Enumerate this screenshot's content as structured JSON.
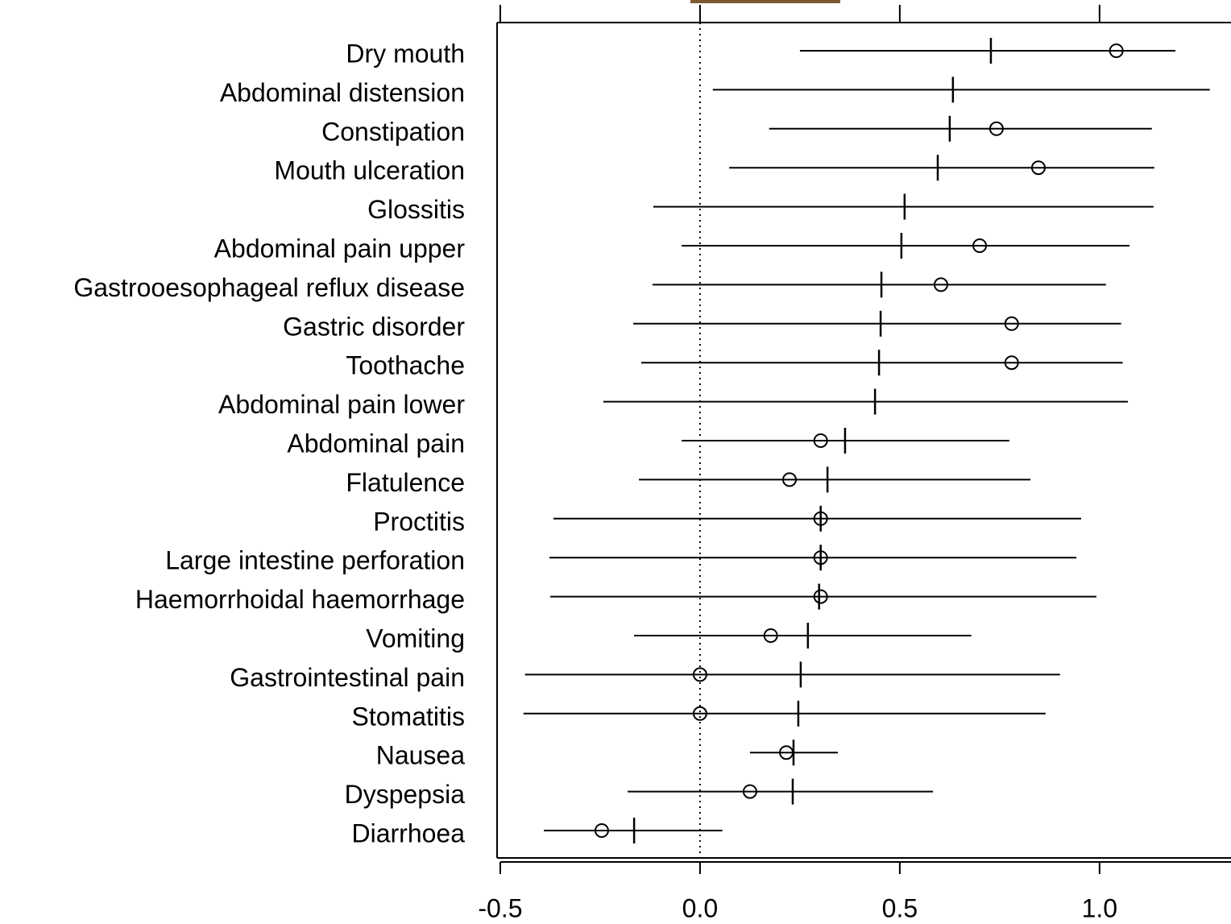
{
  "chart_data": {
    "type": "forest",
    "categories": [
      "Dry mouth",
      "Abdominal distension",
      "Constipation",
      "Mouth ulceration",
      "Glossitis",
      "Abdominal pain upper",
      "Gastrooesophageal reflux disease",
      "Gastric disorder",
      "Toothache",
      "Abdominal pain lower",
      "Abdominal pain",
      "Flatulence",
      "Proctitis",
      "Large intestine perforation",
      "Haemorrhoidal haemorrhage",
      "Vomiting",
      "Gastrointestinal pain",
      "Stomatitis",
      "Nausea",
      "Dyspepsia",
      "Diarrhoea"
    ],
    "low": [
      0.25,
      0.032,
      0.173,
      0.073,
      -0.117,
      -0.046,
      -0.119,
      -0.167,
      -0.147,
      -0.242,
      -0.046,
      -0.153,
      -0.367,
      -0.377,
      -0.375,
      -0.165,
      -0.438,
      -0.442,
      0.125,
      -0.181,
      -0.391
    ],
    "high": [
      1.19,
      1.276,
      1.131,
      1.137,
      1.135,
      1.075,
      1.016,
      1.054,
      1.058,
      1.071,
      0.774,
      0.827,
      0.954,
      0.942,
      0.992,
      0.679,
      0.901,
      0.865,
      0.345,
      0.583,
      0.056
    ],
    "estimate": [
      0.728,
      0.633,
      0.625,
      0.595,
      0.512,
      0.504,
      0.454,
      0.452,
      0.448,
      0.438,
      0.363,
      0.319,
      0.302,
      0.302,
      0.298,
      0.27,
      0.252,
      0.246,
      0.234,
      0.232,
      -0.165
    ],
    "observed": [
      1.042,
      null,
      0.742,
      0.847,
      null,
      0.7,
      0.603,
      0.78,
      0.78,
      null,
      0.302,
      0.224,
      0.302,
      0.302,
      0.302,
      0.177,
      0,
      0,
      0.216,
      0.125,
      -0.246
    ],
    "reference": 0,
    "xlim": [
      -0.508,
      1.329
    ],
    "xticks": [
      -0.5,
      {
        "value": 0,
        "label": "0.0"
      },
      0.5,
      {
        "value": 1,
        "label": "1.0"
      }
    ],
    "color": "#000000"
  }
}
